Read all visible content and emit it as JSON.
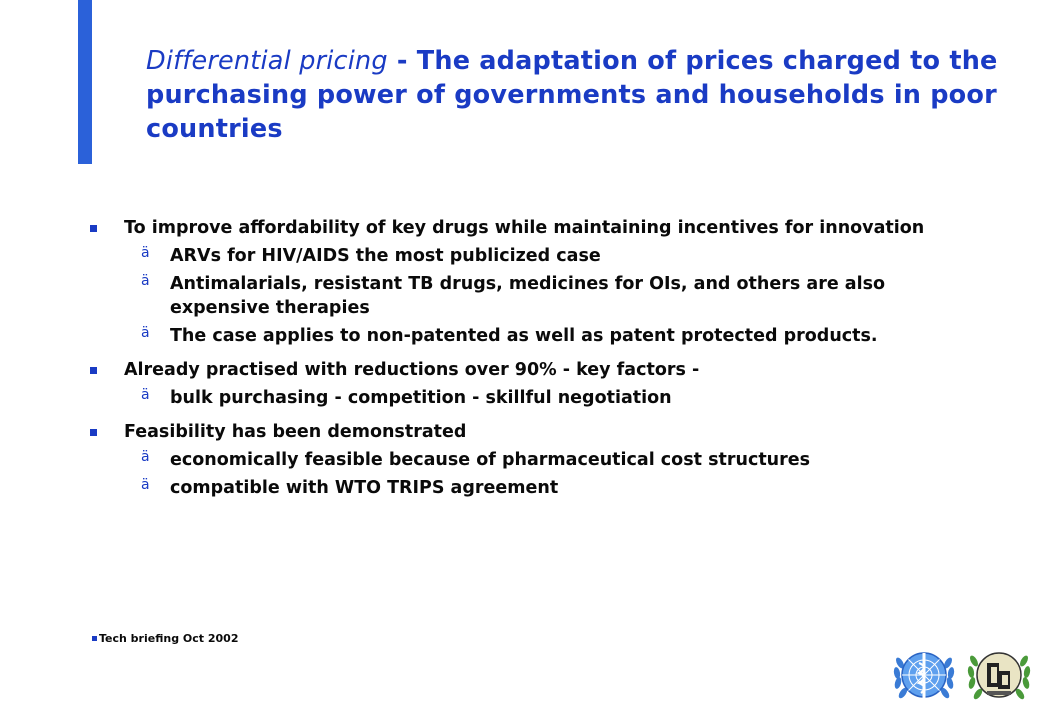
{
  "slide": {
    "title_italic": "Differential pricing",
    "title_rest": " - The adaptation of prices charged to the purchasing power of governments and households in poor countries",
    "accent_color": "#2b61d9",
    "title_color": "#1a3bc4"
  },
  "bullets": [
    {
      "text": "To improve affordability of key drugs while maintaining incentives for innovation",
      "subs": [
        "ARVs for HIV/AIDS the most publicized case",
        "Antimalarials, resistant TB drugs, medicines for OIs, and others are also expensive therapies",
        "The case applies to non-patented as well as patent protected products."
      ]
    },
    {
      "text": "Already practised with reductions over 90% - key factors -",
      "subs": [
        "bulk purchasing - competition - skillful negotiation"
      ]
    },
    {
      "text": "Feasibility has been demonstrated",
      "subs": [
        "economically feasible because of pharmaceutical cost structures",
        "compatible with WTO TRIPS agreement"
      ]
    }
  ],
  "sub_marker": "ä",
  "footer": {
    "text": "Tech briefing Oct 2002"
  },
  "logos": [
    {
      "name": "who-emblem-icon"
    },
    {
      "name": "organization-emblem-icon"
    }
  ]
}
